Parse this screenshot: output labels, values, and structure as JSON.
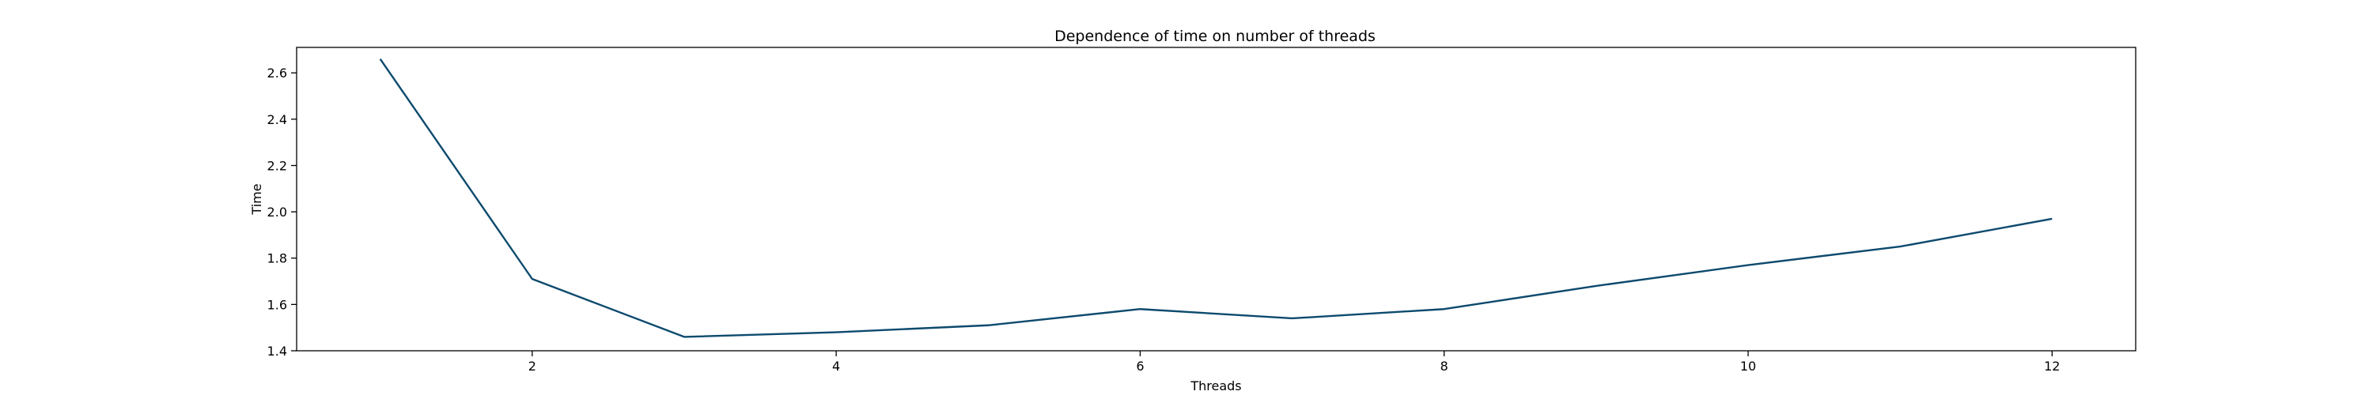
{
  "chart_data": {
    "type": "line",
    "title": "Dependence of time on number of threads",
    "xlabel": "Threads",
    "ylabel": "Time",
    "x": [
      1,
      2,
      3,
      4,
      5,
      6,
      7,
      8,
      9,
      10,
      11,
      12
    ],
    "series": [
      {
        "values": [
          2.66,
          1.71,
          1.46,
          1.48,
          1.51,
          1.58,
          1.54,
          1.58,
          1.68,
          1.77,
          1.85,
          1.97
        ],
        "color": "#0d4a6e"
      }
    ],
    "xlim": [
      0.45,
      12.55
    ],
    "ylim": [
      1.4,
      2.71
    ],
    "xticks": [
      2,
      4,
      6,
      8,
      10,
      12
    ],
    "yticks": [
      1.4,
      1.6,
      1.8,
      2.0,
      2.2,
      2.4,
      2.6
    ],
    "xtick_labels": [
      "2",
      "4",
      "6",
      "8",
      "10",
      "12"
    ],
    "ytick_labels": [
      "1.4",
      "1.6",
      "1.8",
      "2.0",
      "2.2",
      "2.4",
      "2.6"
    ],
    "grid": false,
    "legend": false
  }
}
